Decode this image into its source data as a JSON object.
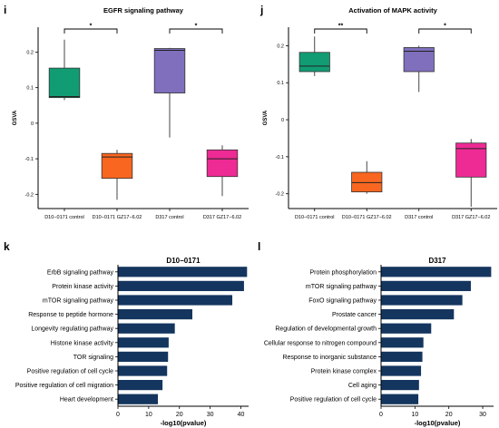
{
  "panels": {
    "i": "i",
    "j": "j",
    "k": "k",
    "l": "l"
  },
  "colors": {
    "control_a": "#119C73",
    "treated_a": "#F86620",
    "control_b": "#7F6FBC",
    "treated_b": "#EE2A94",
    "bar": "#14355E"
  },
  "chart_data": [
    {
      "panel": "i",
      "type": "box",
      "title": "EGFR signaling pathway",
      "ylabel": "GSVA",
      "ylim": [
        -0.24,
        0.27
      ],
      "yticks": [
        0.2,
        0.1,
        0,
        -0.1,
        -0.2
      ],
      "ytick_labels": [
        "0.2",
        "0.1",
        "0",
        "-0.1",
        "-0.2"
      ],
      "categories": [
        "D10−0171 control",
        "D10−0171 GZ17−6.02",
        "D317 control",
        "D317 GZ17−6.02"
      ],
      "boxes": [
        {
          "min": 0.065,
          "q1": 0.072,
          "median": 0.075,
          "q3": 0.155,
          "max": 0.235
        },
        {
          "min": -0.215,
          "q1": -0.155,
          "median": -0.095,
          "q3": -0.085,
          "max": -0.075
        },
        {
          "min": -0.04,
          "q1": 0.085,
          "median": 0.205,
          "q3": 0.21,
          "max": 0.212
        },
        {
          "min": -0.205,
          "q1": -0.15,
          "median": -0.1,
          "q3": -0.075,
          "max": -0.062
        }
      ],
      "significance": [
        {
          "from": 0,
          "to": 1,
          "label": "*"
        },
        {
          "from": 2,
          "to": 3,
          "label": "*"
        }
      ]
    },
    {
      "panel": "j",
      "type": "box",
      "title": "Activation of MAPK activity",
      "ylabel": "GSVA",
      "ylim": [
        -0.24,
        0.25
      ],
      "yticks": [
        0.2,
        0.1,
        0,
        -0.1,
        -0.2
      ],
      "ytick_labels": [
        "0.2",
        "0.1",
        "0",
        "-0.1",
        "-0.2"
      ],
      "categories": [
        "D10−0171 control",
        "D10−0171 GZ17−6.02",
        "D317 control",
        "D317 GZ17−6.02"
      ],
      "boxes": [
        {
          "min": 0.118,
          "q1": 0.13,
          "median": 0.145,
          "q3": 0.182,
          "max": 0.225
        },
        {
          "min": -0.2,
          "q1": -0.195,
          "median": -0.17,
          "q3": -0.142,
          "max": -0.112
        },
        {
          "min": 0.075,
          "q1": 0.13,
          "median": 0.185,
          "q3": 0.195,
          "max": 0.2
        },
        {
          "min": -0.235,
          "q1": -0.155,
          "median": -0.078,
          "q3": -0.063,
          "max": -0.052
        }
      ],
      "significance": [
        {
          "from": 0,
          "to": 1,
          "label": "**"
        },
        {
          "from": 2,
          "to": 3,
          "label": "*"
        }
      ]
    },
    {
      "panel": "k",
      "type": "bar",
      "orientation": "horizontal",
      "title": "D10−0171",
      "xlabel": "-log10(pvalue)",
      "xlim": [
        0,
        42.5
      ],
      "xticks": [
        0,
        10,
        20,
        30,
        40
      ],
      "categories": [
        "ErbB signaling pathway",
        "Protein kinase activity",
        "mTOR signaling pathway",
        "Response to peptide hormone",
        "Longevity regulating pathway",
        "Histone kinase activity",
        "TOR signaling",
        "Positive regulation of cell cycle",
        "Positive regulation of cell migration",
        "Heart development"
      ],
      "values": [
        42,
        41,
        37.2,
        24.2,
        18.5,
        16.5,
        16.3,
        16,
        14.5,
        13
      ]
    },
    {
      "panel": "l",
      "type": "bar",
      "orientation": "horizontal",
      "title": "D317",
      "xlabel": "-log10(pvalue)",
      "xlim": [
        0,
        33.2
      ],
      "xticks": [
        0,
        10,
        20,
        30
      ],
      "categories": [
        "Protein phosphorylation",
        "mTOR signaling pathway",
        "FoxO signaling pathway",
        "Prostate cancer",
        "Regulation of developmental growth",
        "Cellular response to nitrogen compound",
        "Response to inorganic substance",
        "Protein kinase complex",
        "Cell aging",
        "Positive regulation of cell cycle"
      ],
      "values": [
        32.5,
        26.5,
        24,
        21.5,
        14.8,
        12.5,
        12.2,
        11.8,
        11.2,
        11
      ]
    }
  ]
}
